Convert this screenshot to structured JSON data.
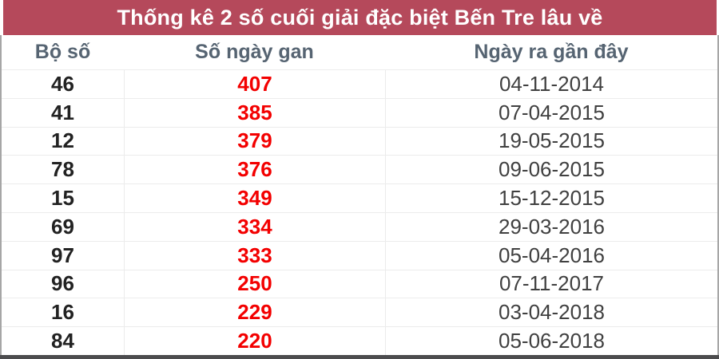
{
  "title": "Thống kê 2 số cuối giải đặc biệt Bến Tre lâu về",
  "table": {
    "columns": [
      "Bộ số",
      "Số ngày gan",
      "Ngày ra gần đây"
    ],
    "rows": [
      {
        "pair": "46",
        "gap": "407",
        "date": "04-11-2014"
      },
      {
        "pair": "41",
        "gap": "385",
        "date": "07-04-2015"
      },
      {
        "pair": "12",
        "gap": "379",
        "date": "19-05-2015"
      },
      {
        "pair": "78",
        "gap": "376",
        "date": "09-06-2015"
      },
      {
        "pair": "15",
        "gap": "349",
        "date": "15-12-2015"
      },
      {
        "pair": "69",
        "gap": "334",
        "date": "29-03-2016"
      },
      {
        "pair": "97",
        "gap": "333",
        "date": "05-04-2016"
      },
      {
        "pair": "96",
        "gap": "250",
        "date": "07-11-2017"
      },
      {
        "pair": "16",
        "gap": "229",
        "date": "03-04-2018"
      },
      {
        "pair": "84",
        "gap": "220",
        "date": "05-06-2018"
      }
    ]
  },
  "colors": {
    "title_bg": "#b5495b",
    "title_text": "#ffffff",
    "header_text": "#566472",
    "pair_text": "#222222",
    "gap_text": "#f30000",
    "date_text": "#404040",
    "side_border": "#a6a6a6",
    "row_separator": "#ececec",
    "bottom_bar": "#4c4c4e"
  }
}
